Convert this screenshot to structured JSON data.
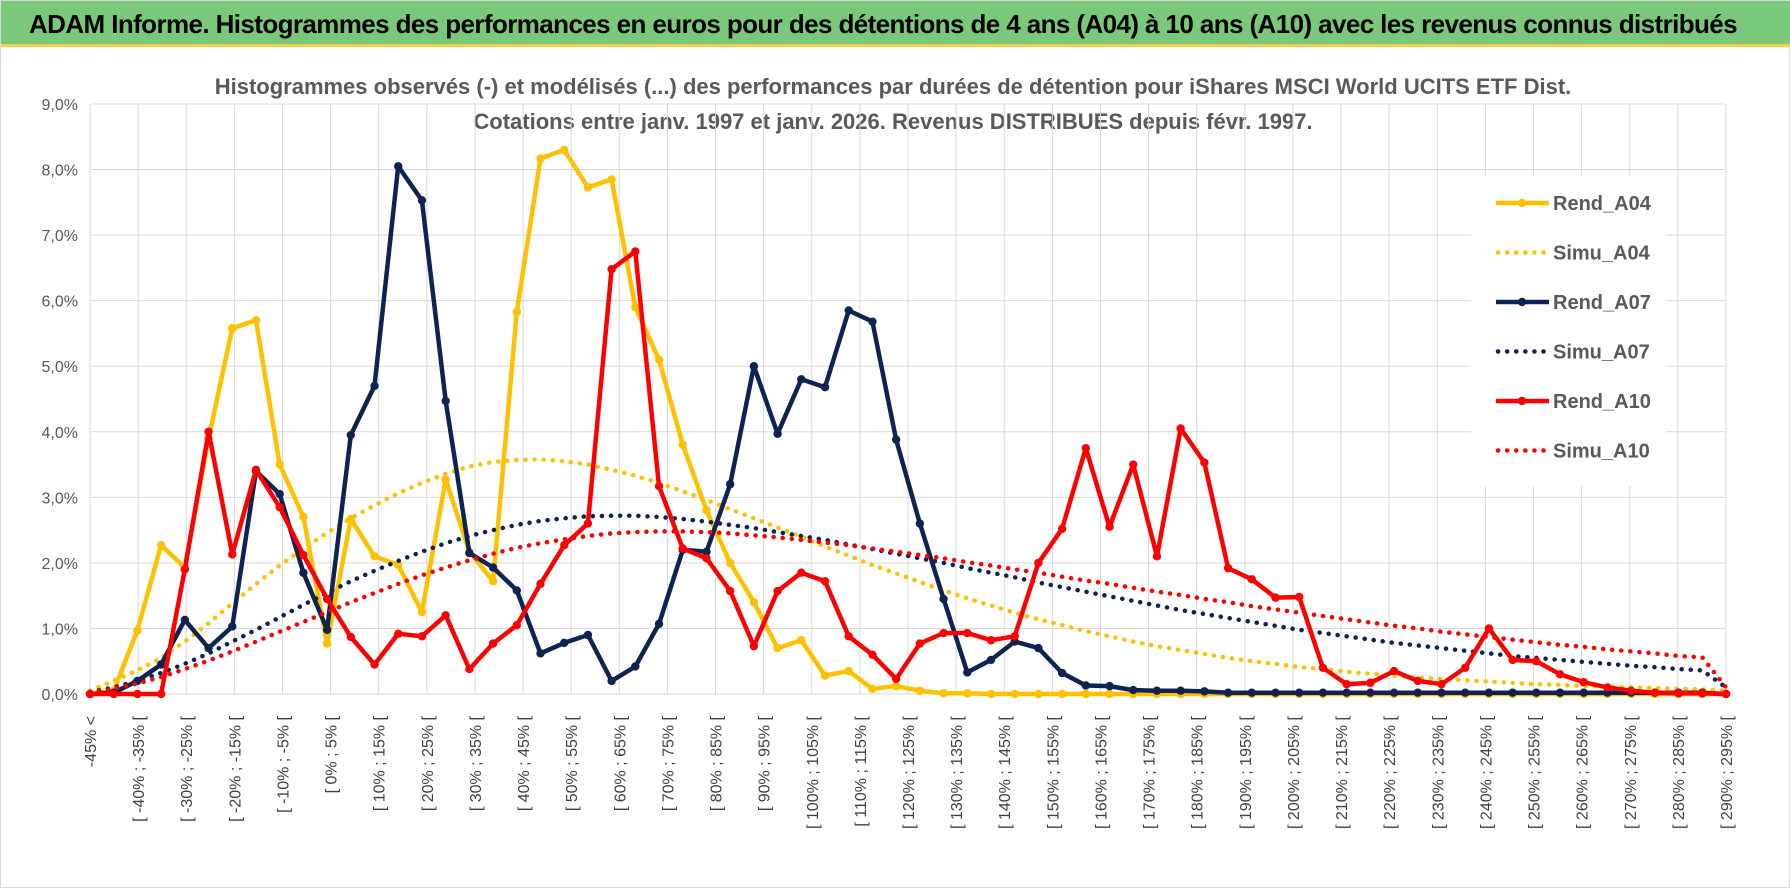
{
  "banner": {
    "title": "ADAM Informe. Histogrammes des performances en euros pour des détentions de 4 ans (A04) à 10 ans (A10) avec les revenus connus distribués"
  },
  "colors": {
    "banner_bg": "#7ac97a",
    "banner_accent": "#f5d24b",
    "A04": "#ffc000",
    "A07": "#0f2352",
    "A10": "#ff0000",
    "grid": "#d9d9d9"
  },
  "chart_data": {
    "type": "line",
    "title_lines": [
      "Histogrammes observés (-) et modélisés (...) des performances par durées de détention pour iShares MSCI World UCITS ETF Dist.",
      "Cotations entre janv. 1997 et janv. 2026. Revenus DISTRIBUES depuis févr. 1997."
    ],
    "ylim": [
      0,
      9
    ],
    "y_ticks": [
      "0,0%",
      "1,0%",
      "2,0%",
      "3,0%",
      "4,0%",
      "5,0%",
      "6,0%",
      "7,0%",
      "8,0%",
      "9,0%"
    ],
    "x_labels": [
      "-45% <",
      "[ -40% ; -35% [",
      "[ -30% ; -25% [",
      "[ -20% ; -15% [",
      "[ -10% ; -5% [",
      "[ 0% ; 5% [",
      "[ 10% ; 15% [",
      "[ 20% ; 25% [",
      "[ 30% ; 35% [",
      "[ 40% ; 45% [",
      "[ 50% ; 55% [",
      "[ 60% ; 65% [",
      "[ 70% ; 75% [",
      "[ 80% ; 85% [",
      "[ 90% ; 95% [",
      "[ 100% ; 105% [",
      "[ 110% ; 115% [",
      "[ 120% ; 125% [",
      "[ 130% ; 135% [",
      "[ 140% ; 145% [",
      "[ 150% ; 155% [",
      "[ 160% ; 165% [",
      "[ 170% ; 175% [",
      "[ 180% ; 185% [",
      "[ 190% ; 195% [",
      "[ 200% ; 205% [",
      "[ 210% ; 215% [",
      "[ 220% ; 225% [",
      "[ 230% ; 235% [",
      "[ 240% ; 245% [",
      "[ 250% ; 255% [",
      "[ 260% ; 265% [",
      "[ 270% ; 275% [",
      "[ 280% ; 285% [",
      "[ 290% ; 295% ["
    ],
    "legend_position": "right",
    "grid": true,
    "series": [
      {
        "name": "Rend_A04",
        "color_key": "A04",
        "style": "solid",
        "values": [
          0,
          0.05,
          0.97,
          2.27,
          1.93,
          3.9,
          5.58,
          5.7,
          3.5,
          2.7,
          0.77,
          2.67,
          2.1,
          1.97,
          1.25,
          3.27,
          2.17,
          1.72,
          5.83,
          8.17,
          8.3,
          7.73,
          7.85,
          5.9,
          5.1,
          3.8,
          2.8,
          2.0,
          1.4,
          0.7,
          0.82,
          0.28,
          0.35,
          0.08,
          0.12,
          0.05,
          0.01,
          0.01,
          0.0,
          0.0,
          0.0,
          0.0,
          0.0,
          0.0,
          0.0,
          0.0,
          0.0,
          0.0,
          0.0,
          0.0,
          0.0,
          0.0,
          0.0,
          0.0,
          0.0,
          0.0,
          0.0,
          0.0,
          0.0,
          0.0,
          0.0,
          0.0,
          0.0,
          0.0,
          0.0,
          0.0,
          0.0,
          0.0,
          0.0,
          0.0
        ]
      },
      {
        "name": "Simu_A04",
        "color_key": "A04",
        "style": "dotted",
        "values": [
          0.05,
          0.2,
          0.36,
          0.55,
          0.8,
          1.08,
          1.38,
          1.68,
          1.96,
          2.22,
          2.46,
          2.68,
          2.88,
          3.06,
          3.22,
          3.36,
          3.47,
          3.54,
          3.57,
          3.58,
          3.55,
          3.5,
          3.42,
          3.33,
          3.22,
          3.09,
          2.96,
          2.82,
          2.68,
          2.54,
          2.4,
          2.25,
          2.11,
          1.97,
          1.84,
          1.71,
          1.58,
          1.46,
          1.35,
          1.24,
          1.14,
          1.05,
          0.96,
          0.88,
          0.8,
          0.73,
          0.67,
          0.61,
          0.55,
          0.5,
          0.46,
          0.41,
          0.38,
          0.34,
          0.31,
          0.28,
          0.25,
          0.23,
          0.21,
          0.19,
          0.17,
          0.15,
          0.14,
          0.12,
          0.11,
          0.1,
          0.09,
          0.08,
          0.07,
          0.05
        ]
      },
      {
        "name": "Rend_A07",
        "color_key": "A07",
        "style": "solid",
        "values": [
          0,
          0.02,
          0.2,
          0.45,
          1.13,
          0.7,
          1.03,
          3.4,
          3.05,
          1.85,
          0.98,
          3.95,
          4.7,
          8.05,
          7.53,
          4.47,
          2.15,
          1.93,
          1.58,
          0.62,
          0.78,
          0.9,
          0.2,
          0.42,
          1.07,
          2.2,
          2.17,
          3.2,
          5.0,
          3.97,
          4.8,
          4.68,
          5.85,
          5.68,
          3.88,
          2.6,
          1.45,
          0.33,
          0.52,
          0.8,
          0.7,
          0.32,
          0.13,
          0.12,
          0.06,
          0.05,
          0.05,
          0.04,
          0.02,
          0.02,
          0.02,
          0.02,
          0.02,
          0.02,
          0.02,
          0.02,
          0.02,
          0.02,
          0.02,
          0.02,
          0.02,
          0.02,
          0.02,
          0.02,
          0.02,
          0.02,
          0.02,
          0.02,
          0.02,
          0.0
        ]
      },
      {
        "name": "Simu_A07",
        "color_key": "A07",
        "style": "dotted",
        "values": [
          0.03,
          0.1,
          0.2,
          0.32,
          0.46,
          0.62,
          0.8,
          0.98,
          1.17,
          1.36,
          1.54,
          1.72,
          1.88,
          2.03,
          2.17,
          2.3,
          2.41,
          2.5,
          2.58,
          2.64,
          2.68,
          2.71,
          2.72,
          2.72,
          2.7,
          2.67,
          2.63,
          2.58,
          2.53,
          2.47,
          2.41,
          2.35,
          2.28,
          2.21,
          2.14,
          2.07,
          2.0,
          1.92,
          1.85,
          1.78,
          1.7,
          1.63,
          1.56,
          1.49,
          1.42,
          1.35,
          1.28,
          1.22,
          1.16,
          1.1,
          1.04,
          0.98,
          0.93,
          0.88,
          0.83,
          0.78,
          0.74,
          0.7,
          0.66,
          0.62,
          0.58,
          0.55,
          0.52,
          0.49,
          0.46,
          0.43,
          0.41,
          0.38,
          0.36,
          0.1
        ]
      },
      {
        "name": "Rend_A10",
        "color_key": "A10",
        "style": "solid",
        "values": [
          0,
          0,
          0,
          0,
          1.9,
          4.0,
          2.13,
          3.42,
          2.85,
          2.12,
          1.45,
          0.87,
          0.45,
          0.92,
          0.88,
          1.2,
          0.38,
          0.77,
          1.05,
          1.68,
          2.27,
          2.6,
          6.48,
          6.75,
          3.17,
          2.22,
          2.07,
          1.57,
          0.73,
          1.57,
          1.85,
          1.72,
          0.88,
          0.6,
          0.23,
          0.77,
          0.93,
          0.93,
          0.82,
          0.88,
          2.0,
          2.52,
          3.75,
          2.55,
          3.5,
          2.1,
          4.05,
          3.53,
          1.92,
          1.75,
          1.47,
          1.48,
          0.4,
          0.15,
          0.17,
          0.35,
          0.2,
          0.15,
          0.4,
          1.0,
          0.52,
          0.5,
          0.3,
          0.18,
          0.1,
          0.05,
          0.02,
          0.01,
          0.01,
          0.0
        ]
      },
      {
        "name": "Simu_A10",
        "color_key": "A10",
        "style": "dotted",
        "values": [
          0.03,
          0.08,
          0.16,
          0.26,
          0.38,
          0.51,
          0.65,
          0.8,
          0.95,
          1.1,
          1.25,
          1.4,
          1.54,
          1.68,
          1.81,
          1.93,
          2.04,
          2.14,
          2.23,
          2.3,
          2.36,
          2.41,
          2.45,
          2.47,
          2.48,
          2.48,
          2.47,
          2.45,
          2.42,
          2.39,
          2.35,
          2.31,
          2.27,
          2.22,
          2.17,
          2.12,
          2.07,
          2.01,
          1.96,
          1.9,
          1.85,
          1.79,
          1.73,
          1.68,
          1.62,
          1.56,
          1.51,
          1.45,
          1.4,
          1.34,
          1.29,
          1.24,
          1.19,
          1.14,
          1.09,
          1.04,
          1.0,
          0.95,
          0.91,
          0.87,
          0.83,
          0.79,
          0.75,
          0.72,
          0.68,
          0.65,
          0.62,
          0.58,
          0.56,
          0.1
        ]
      }
    ]
  }
}
